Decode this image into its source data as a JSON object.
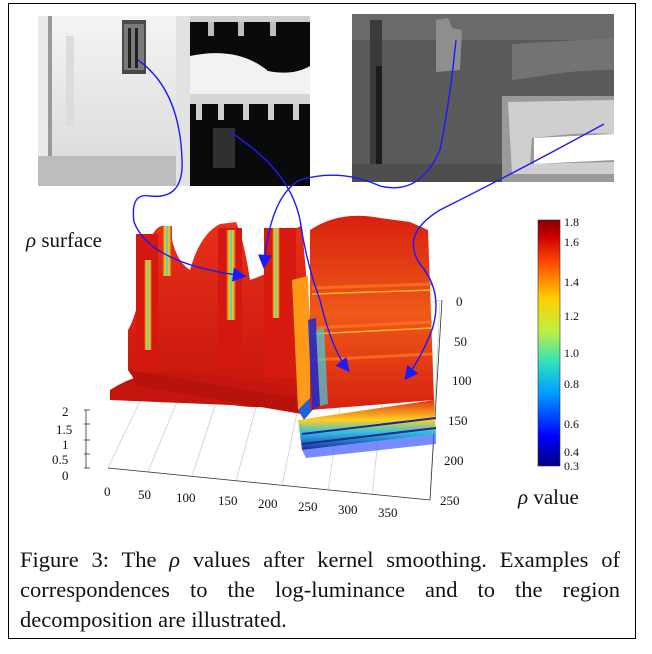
{
  "figure": {
    "rho_symbol": "ρ",
    "surface_label_suffix": " surface",
    "value_label_suffix": " value",
    "caption_prefix": "Figure 3: The ",
    "caption_rest": " values after kernel smoothing. Examples of correspondences to the log-luminance and to the region decomposition are illustrated."
  },
  "surface_axes": {
    "z_ticks": [
      "2",
      "1.5",
      "1",
      "0.5",
      "0"
    ],
    "x_ticks": [
      "0",
      "50",
      "100",
      "150",
      "200",
      "250",
      "300",
      "350"
    ],
    "y_ticks": [
      "0",
      "50",
      "100",
      "150",
      "200",
      "250"
    ]
  },
  "colorbar": {
    "ticks": [
      "1.8",
      "1.6",
      "1.4",
      "1.2",
      "1.0",
      "0.8",
      "0.6",
      "0.4",
      "0.3"
    ]
  },
  "colors": {
    "arrow": "#1a1aff",
    "surface_high": "#d01a10",
    "surface_low": "#1a2aa0"
  }
}
